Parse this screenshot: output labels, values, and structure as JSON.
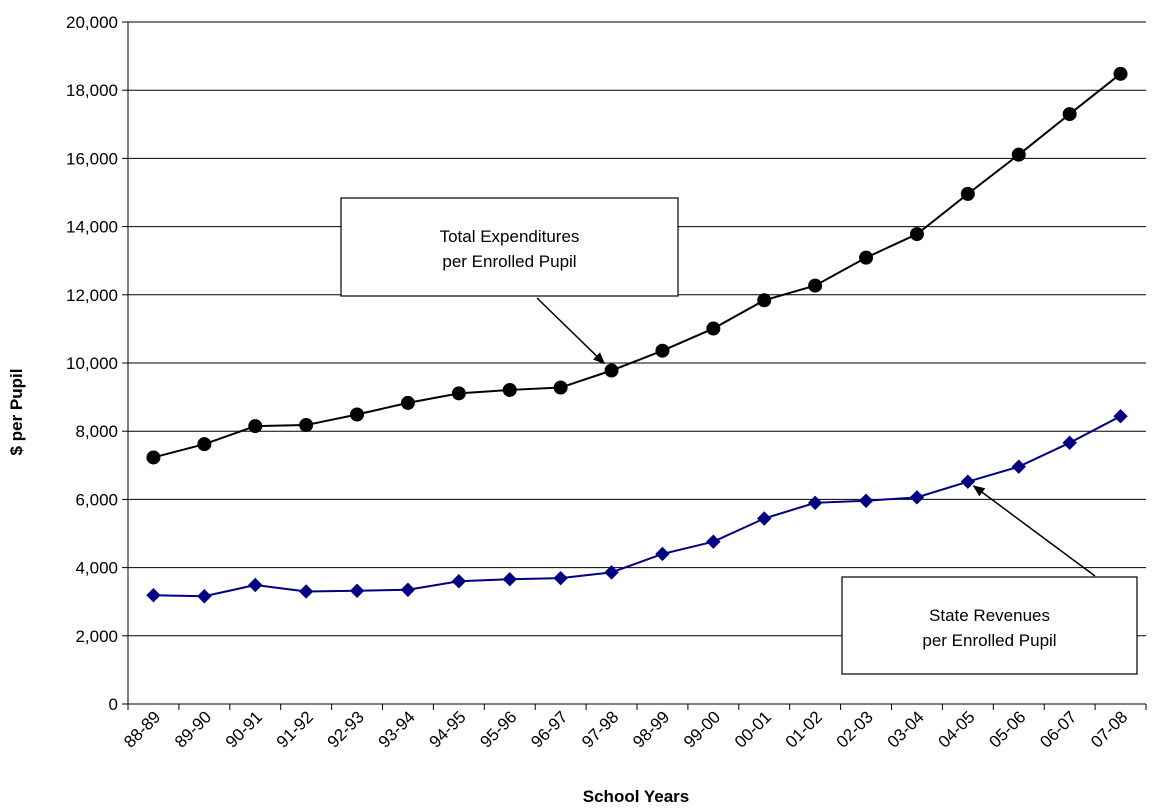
{
  "chart_data": {
    "type": "line",
    "title": "",
    "xlabel": "School Years",
    "ylabel": "$ per Pupil",
    "ylim": [
      0,
      20000
    ],
    "ytick_step": 2000,
    "grid": "horizontal",
    "legend": "none",
    "categories": [
      "88-89",
      "89-90",
      "90-91",
      "91-92",
      "92-93",
      "93-94",
      "94-95",
      "95-96",
      "96-97",
      "97-98",
      "98-99",
      "99-00",
      "00-01",
      "01-02",
      "02-03",
      "03-04",
      "04-05",
      "05-06",
      "06-07",
      "07-08"
    ],
    "series": [
      {
        "key": "total",
        "color": "#000000",
        "marker": "circle",
        "values": [
          7230,
          7620,
          8150,
          8180,
          8490,
          8830,
          9110,
          9210,
          9280,
          9780,
          10360,
          11010,
          11840,
          12270,
          13090,
          13780,
          14960,
          16110,
          17300,
          18480
        ]
      },
      {
        "key": "state",
        "color": "#000080",
        "marker": "diamond",
        "values": [
          3190,
          3160,
          3490,
          3300,
          3320,
          3350,
          3600,
          3660,
          3690,
          3860,
          4400,
          4760,
          5440,
          5900,
          5960,
          6060,
          6520,
          6960,
          7660,
          8440
        ]
      }
    ],
    "annotations": [
      {
        "key": "total",
        "lines": [
          "Total Expenditures",
          "per Enrolled Pupil"
        ],
        "target_category": "97-98",
        "target_series": "total"
      },
      {
        "key": "state",
        "lines": [
          "State Revenues",
          "per Enrolled Pupil"
        ],
        "target_category": "04-05",
        "target_series": "state"
      }
    ]
  }
}
